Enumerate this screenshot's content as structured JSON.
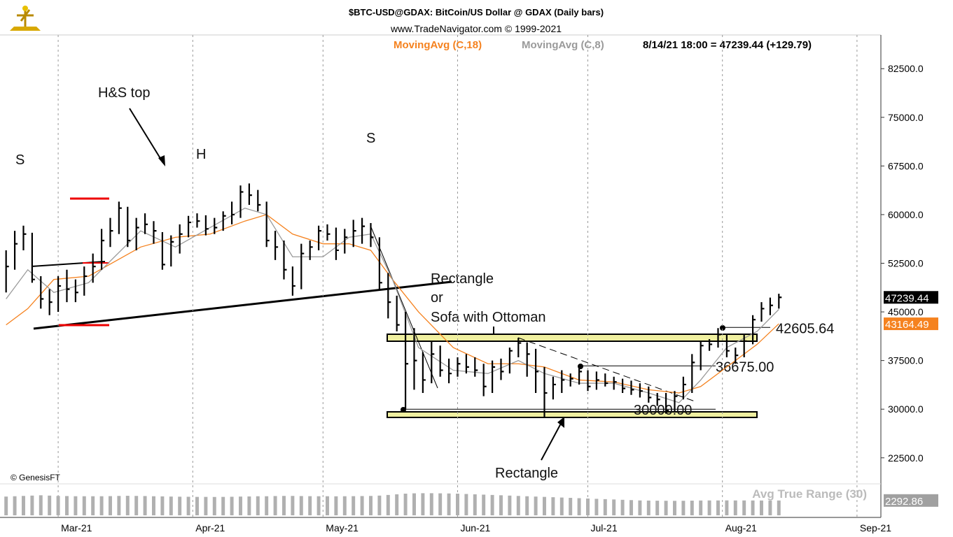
{
  "chart_data": {
    "type": "ohlc",
    "title": "$BTC-USD@GDAX:  BitCoin/US Dollar @ GDAX  (Daily bars)",
    "subtitle": "www.TradeNavigator.com © 1999-2021",
    "status": "8/14/21 18:00 = 47239.44 (+129.79)",
    "copyright": "© GenesisFT",
    "color": "#000000",
    "x": [
      48,
      50,
      52,
      54,
      56,
      58,
      60,
      62,
      64,
      66,
      68,
      70,
      72,
      74,
      76,
      78,
      80,
      82,
      84,
      86,
      88,
      90,
      92,
      94,
      96,
      98,
      100,
      102,
      104,
      106,
      108,
      110,
      112,
      114,
      116,
      118,
      120,
      122,
      124,
      126,
      128,
      130,
      132,
      134,
      136,
      138,
      140,
      142,
      144,
      146,
      148,
      150,
      152,
      154,
      156,
      158,
      160,
      162,
      164,
      166,
      168,
      170,
      172,
      174,
      176,
      178,
      180,
      182,
      184,
      186,
      188,
      190,
      192,
      194,
      196,
      198,
      200,
      202,
      204,
      206,
      208,
      210,
      212,
      214,
      216,
      218,
      220,
      222,
      224,
      226
    ],
    "high": [
      54500,
      57500,
      58300,
      57200,
      50500,
      48500,
      50500,
      51500,
      50000,
      52000,
      54000,
      57800,
      59500,
      62000,
      61200,
      59500,
      60200,
      59000,
      57300,
      56800,
      58500,
      59800,
      60200,
      59900,
      59500,
      60500,
      62000,
      64500,
      64800,
      63800,
      62000,
      57500,
      56000,
      52000,
      55500,
      56000,
      58300,
      58500,
      58000,
      57800,
      59200,
      59500,
      58700,
      56500,
      51000,
      47500,
      45000,
      42500,
      38800,
      40500,
      39800,
      37800,
      38000,
      38500,
      38000,
      37000,
      37500,
      37800,
      39500,
      41000,
      40300,
      39300,
      36500,
      35000,
      36000,
      35500,
      36500,
      36000,
      35800,
      35500,
      35000,
      34700,
      34400,
      34000,
      33500,
      32500,
      32500,
      32800,
      35000,
      38500,
      40500,
      40800,
      42500,
      41500,
      39500,
      41500,
      44500,
      46500,
      47200,
      47800
    ],
    "low": [
      48000,
      51500,
      54500,
      49500,
      45500,
      44500,
      45000,
      46500,
      46500,
      47500,
      49500,
      51500,
      55000,
      57000,
      55000,
      54500,
      57000,
      55500,
      51500,
      52000,
      54000,
      56500,
      58000,
      56800,
      57000,
      57500,
      58500,
      59500,
      61500,
      60500,
      55000,
      53000,
      50000,
      47500,
      48500,
      53000,
      54500,
      56000,
      53000,
      54000,
      55000,
      55500,
      55000,
      48500,
      44000,
      42000,
      30000,
      33000,
      32500,
      34000,
      35000,
      34000,
      35000,
      35500,
      35000,
      32000,
      32500,
      34500,
      35500,
      38000,
      35000,
      32500,
      28800,
      31500,
      32500,
      33500,
      33800,
      32800,
      33000,
      33500,
      33000,
      32500,
      32200,
      31800,
      31000,
      30500,
      29300,
      29500,
      31500,
      32500,
      36000,
      39000,
      39500,
      38000,
      37000,
      38000,
      40000,
      43500,
      44500,
      45500
    ],
    "close": [
      52000,
      55500,
      57000,
      50000,
      47000,
      46500,
      49000,
      48500,
      48000,
      50500,
      52000,
      56000,
      57500,
      61000,
      56000,
      58000,
      58500,
      57500,
      52300,
      55800,
      57000,
      58800,
      59000,
      57800,
      58000,
      59800,
      60000,
      63500,
      63000,
      61500,
      56000,
      55000,
      51500,
      49000,
      54000,
      55000,
      57500,
      57000,
      54500,
      56500,
      57500,
      58200,
      56500,
      49500,
      46500,
      43000,
      37000,
      37500,
      34500,
      38500,
      36000,
      35500,
      37000,
      36500,
      36000,
      33500,
      36500,
      35800,
      39000,
      40200,
      38500,
      35800,
      32500,
      33800,
      34500,
      34700,
      35800,
      33500,
      34500,
      34000,
      34200,
      33200,
      33000,
      32800,
      31800,
      31500,
      29800,
      32000,
      33800,
      37200,
      39800,
      40000,
      41500,
      39000,
      38300,
      40500,
      43800,
      45500,
      46000,
      47239.44
    ],
    "series": [
      {
        "name": "MovingAvg (C,18)",
        "color": "#f5821f",
        "x": [
          48,
          53,
          59,
          67,
          79,
          87,
          95,
          103,
          108,
          114,
          121,
          127,
          132,
          137,
          143,
          151,
          159,
          166,
          172,
          180,
          188,
          196,
          203,
          208,
          214,
          221,
          226
        ],
        "values": [
          43000,
          45500,
          50000,
          50500,
          55000,
          56500,
          57000,
          59000,
          60000,
          57000,
          55500,
          55500,
          54500,
          50000,
          45000,
          39500,
          37000,
          37000,
          36500,
          34500,
          34200,
          33000,
          32500,
          33500,
          36500,
          40000,
          43164.49
        ]
      },
      {
        "name": "MovingAvg (C,8)",
        "color": "#9a9a9a",
        "x": [
          48,
          53,
          59,
          67,
          79,
          87,
          95,
          103,
          108,
          114,
          121,
          127,
          132,
          137,
          143,
          151,
          159,
          166,
          172,
          180,
          188,
          196,
          203,
          208,
          214,
          221,
          226
        ],
        "values": [
          47000,
          51500,
          48000,
          49500,
          57500,
          55000,
          58000,
          61000,
          60000,
          53500,
          53500,
          56500,
          57000,
          50000,
          39500,
          36000,
          35500,
          37500,
          35500,
          34000,
          34000,
          32500,
          31000,
          34500,
          39500,
          42000,
          45382.55
        ]
      }
    ],
    "xlim": [
      46.6,
      249.5
    ],
    "xticks": [
      {
        "value": 60,
        "label": "Mar-21"
      },
      {
        "value": 91,
        "label": "Apr-21"
      },
      {
        "value": 121,
        "label": "May-21"
      },
      {
        "value": 152,
        "label": "Jun-21"
      },
      {
        "value": 182,
        "label": "Jul-21"
      },
      {
        "value": 213,
        "label": "Aug-21"
      },
      {
        "value": 244,
        "label": "Sep-21"
      }
    ],
    "ylim": [
      18700,
      87700
    ],
    "yticks": [
      {
        "value": 22500,
        "label": "22500.0"
      },
      {
        "value": 30000,
        "label": "30000.0"
      },
      {
        "value": 37500,
        "label": "37500.0"
      },
      {
        "value": 45000,
        "label": "45000.0"
      },
      {
        "value": 52500,
        "label": "52500.0"
      },
      {
        "value": 60000,
        "label": "60000.0"
      },
      {
        "value": 67500,
        "label": "67500.0"
      },
      {
        "value": 75000,
        "label": "75000.0"
      },
      {
        "value": 82500,
        "label": "82500.0"
      }
    ],
    "atr": {
      "name": "Avg True Range (30)",
      "color": "#b0b0b0",
      "ylim": [
        0,
        4000
      ],
      "values": [
        2900,
        2950,
        3000,
        3050,
        3100,
        3050,
        3000,
        2980,
        2950,
        2950,
        2950,
        2950,
        2970,
        3000,
        3020,
        3000,
        2980,
        2950,
        2930,
        2900,
        2880,
        2870,
        2850,
        2850,
        2840,
        2850,
        2870,
        2900,
        2920,
        2950,
        2950,
        2980,
        3000,
        3000,
        2980,
        2960,
        2950,
        2950,
        2940,
        2950,
        2960,
        2980,
        3000,
        3050,
        3150,
        3250,
        3350,
        3400,
        3420,
        3420,
        3400,
        3380,
        3350,
        3300,
        3250,
        3200,
        3150,
        3100,
        3050,
        3000,
        2950,
        2900,
        2850,
        2800,
        2750,
        2700,
        2650,
        2600,
        2550,
        2500,
        2450,
        2400,
        2350,
        2300,
        2280,
        2260,
        2250,
        2240,
        2250,
        2270,
        2290,
        2300,
        2300,
        2310,
        2300,
        2300,
        2295,
        2290,
        2292,
        2292.86
      ]
    },
    "levels": [
      {
        "value": 42605.64,
        "label": "42605.64"
      },
      {
        "value": 36675,
        "label": "36675.00"
      },
      {
        "value": 30000,
        "label": "30000.00"
      }
    ],
    "annotations": [
      "S",
      "H&S top",
      "H",
      "S",
      "Rectangle",
      "or",
      "Sofa with Ottoman",
      "Rectangle"
    ]
  }
}
